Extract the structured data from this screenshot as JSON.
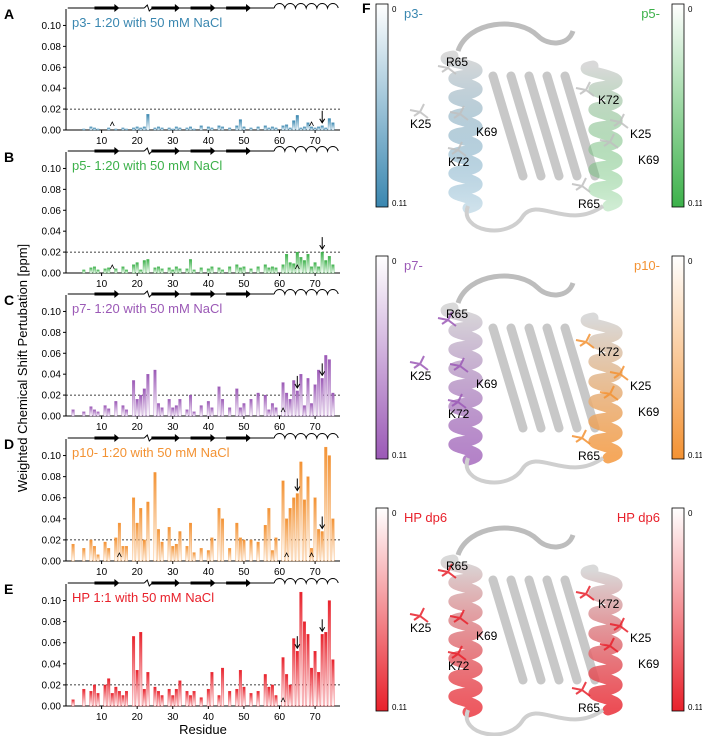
{
  "figure": {
    "ylabel": "Weighted Chemical Shift Pertubation [ppm]",
    "xlabel": "Residue",
    "right_panel_letter": "F",
    "threshold": 0.02,
    "threshold_label": "0.02"
  },
  "structures": [
    {
      "left_label": "p3-",
      "right_label": "p5-",
      "left_color": "#3a87b0",
      "right_color": "#3cb14a",
      "scale_top": "0",
      "scale_bottom": "0.11",
      "residues": [
        "R65",
        "K72",
        "K25",
        "K69",
        "K72",
        "K25",
        "K69",
        "R65"
      ]
    },
    {
      "left_label": "p7-",
      "right_label": "p10-",
      "left_color": "#9b59b6",
      "right_color": "#f39233",
      "scale_top": "0",
      "scale_bottom": "0.11",
      "residues": [
        "R65",
        "K72",
        "K25",
        "K69",
        "K72",
        "K25",
        "K69",
        "R65"
      ]
    },
    {
      "left_label": "HP dp6",
      "right_label": "HP dp6",
      "left_color": "#e8212b",
      "right_color": "#e8212b",
      "scale_top": "0",
      "scale_bottom": "0.11",
      "residues": [
        "R65",
        "K72",
        "K25",
        "K69",
        "K72",
        "K25",
        "K69",
        "R65"
      ]
    }
  ],
  "chart_data": [
    {
      "panel": "A",
      "type": "bar",
      "title": "p3- 1:20 with 50 mM NaCl",
      "color": "#3a87b0",
      "xlabel": "",
      "ylabel": "",
      "ylim": [
        0,
        0.11
      ],
      "xlim": [
        0,
        77
      ],
      "yticks": [
        "0.00",
        "0.02",
        "0.04",
        "0.06",
        "0.08",
        "0.10"
      ],
      "xticks": [
        10,
        20,
        30,
        40,
        50,
        60,
        70
      ],
      "x": [
        5,
        7,
        8,
        9,
        12,
        14,
        16,
        17,
        19,
        20,
        21,
        22,
        23,
        25,
        26,
        27,
        29,
        30,
        31,
        32,
        34,
        35,
        36,
        38,
        40,
        41,
        43,
        44,
        46,
        48,
        49,
        50,
        52,
        54,
        56,
        57,
        58,
        59,
        61,
        62,
        63,
        64,
        65,
        66,
        67,
        68,
        69,
        70,
        71,
        72,
        73,
        74,
        75
      ],
      "values": [
        0.001,
        0.003,
        0.002,
        0.001,
        0.002,
        0.001,
        0.002,
        0.001,
        0.002,
        0.003,
        0.002,
        0.003,
        0.015,
        0.002,
        0.003,
        0.002,
        0.002,
        0.001,
        0.003,
        0.002,
        0.002,
        0.003,
        0.001,
        0.004,
        0.003,
        0.002,
        0.004,
        0.003,
        0.002,
        0.004,
        0.01,
        0.003,
        0.002,
        0.003,
        0.004,
        0.002,
        0.003,
        0.002,
        0.004,
        0.005,
        0.002,
        0.009,
        0.014,
        0.002,
        0.003,
        0.007,
        0.003,
        0.002,
        0.003,
        0.004,
        0.002,
        0.011,
        0.007
      ],
      "arrows": [
        72
      ],
      "carets": [
        13,
        69
      ]
    },
    {
      "panel": "B",
      "type": "bar",
      "title": "p5- 1:20 with 50 mM NaCl",
      "color": "#3cb14a",
      "xlabel": "",
      "ylabel": "",
      "ylim": [
        0,
        0.11
      ],
      "xlim": [
        0,
        77
      ],
      "yticks": [
        "0.00",
        "0.02",
        "0.04",
        "0.06",
        "0.08",
        "0.10"
      ],
      "xticks": [
        10,
        20,
        30,
        40,
        50,
        60,
        70
      ],
      "x": [
        5,
        7,
        8,
        9,
        11,
        12,
        14,
        16,
        17,
        19,
        20,
        21,
        22,
        23,
        25,
        26,
        27,
        29,
        30,
        31,
        32,
        34,
        35,
        36,
        38,
        40,
        41,
        43,
        44,
        46,
        48,
        49,
        50,
        52,
        54,
        56,
        57,
        58,
        59,
        61,
        62,
        63,
        64,
        65,
        66,
        67,
        68,
        69,
        70,
        71,
        72,
        73,
        74,
        75
      ],
      "values": [
        0.003,
        0.005,
        0.006,
        0.003,
        0.004,
        0.005,
        0.004,
        0.006,
        0.003,
        0.008,
        0.01,
        0.003,
        0.012,
        0.013,
        0.005,
        0.006,
        0.004,
        0.005,
        0.003,
        0.006,
        0.004,
        0.004,
        0.013,
        0.003,
        0.005,
        0.004,
        0.006,
        0.005,
        0.003,
        0.006,
        0.008,
        0.005,
        0.006,
        0.004,
        0.006,
        0.008,
        0.005,
        0.006,
        0.005,
        0.008,
        0.018,
        0.01,
        0.009,
        0.02,
        0.015,
        0.012,
        0.018,
        0.006,
        0.01,
        0.006,
        0.02,
        0.012,
        0.016,
        0.008
      ],
      "arrows": [
        72
      ],
      "carets": [
        13,
        65
      ]
    },
    {
      "panel": "C",
      "type": "bar",
      "title": "p7- 1:20 with 50 mM NaCl",
      "color": "#9b59b6",
      "xlabel": "",
      "ylabel": "",
      "ylim": [
        0,
        0.11
      ],
      "xlim": [
        0,
        77
      ],
      "yticks": [
        "0.00",
        "0.02",
        "0.04",
        "0.06",
        "0.08",
        "0.10"
      ],
      "xticks": [
        10,
        20,
        30,
        40,
        50,
        60,
        70
      ],
      "x": [
        2,
        5,
        7,
        8,
        9,
        11,
        12,
        14,
        16,
        17,
        19,
        20,
        21,
        22,
        23,
        25,
        26,
        27,
        29,
        30,
        31,
        32,
        34,
        35,
        36,
        38,
        40,
        41,
        43,
        44,
        46,
        48,
        49,
        50,
        52,
        54,
        56,
        57,
        58,
        59,
        61,
        62,
        63,
        64,
        65,
        66,
        67,
        68,
        69,
        70,
        71,
        72,
        73,
        74,
        75
      ],
      "values": [
        0.006,
        0.004,
        0.009,
        0.006,
        0.004,
        0.01,
        0.007,
        0.014,
        0.01,
        0.006,
        0.034,
        0.016,
        0.02,
        0.026,
        0.04,
        0.044,
        0.012,
        0.008,
        0.016,
        0.008,
        0.01,
        0.016,
        0.006,
        0.02,
        0.004,
        0.01,
        0.014,
        0.008,
        0.028,
        0.016,
        0.008,
        0.026,
        0.008,
        0.012,
        0.016,
        0.022,
        0.02,
        0.006,
        0.012,
        0.008,
        0.032,
        0.022,
        0.016,
        0.034,
        0.024,
        0.04,
        0.01,
        0.036,
        0.012,
        0.03,
        0.044,
        0.036,
        0.058,
        0.054,
        0.022
      ],
      "arrows": [
        65,
        72
      ],
      "carets": [
        61
      ]
    },
    {
      "panel": "D",
      "type": "bar",
      "title": "p10- 1:20 with 50 mM NaCl",
      "color": "#f39233",
      "xlabel": "",
      "ylabel": "",
      "ylim": [
        0,
        0.11
      ],
      "xlim": [
        0,
        77
      ],
      "yticks": [
        "0.00",
        "0.02",
        "0.04",
        "0.06",
        "0.08",
        "0.10"
      ],
      "xticks": [
        10,
        20,
        30,
        40,
        50,
        60,
        70
      ],
      "x": [
        2,
        5,
        7,
        8,
        9,
        11,
        12,
        14,
        15,
        16,
        17,
        19,
        20,
        21,
        22,
        23,
        25,
        26,
        27,
        29,
        30,
        31,
        32,
        34,
        35,
        36,
        38,
        40,
        41,
        43,
        44,
        46,
        48,
        49,
        50,
        52,
        54,
        56,
        57,
        58,
        59,
        61,
        62,
        63,
        64,
        65,
        66,
        67,
        68,
        69,
        70,
        71,
        72,
        73,
        74,
        75
      ],
      "values": [
        0.016,
        0.012,
        0.02,
        0.014,
        0.006,
        0.018,
        0.012,
        0.022,
        0.036,
        0.014,
        0.014,
        0.06,
        0.036,
        0.05,
        0.02,
        0.056,
        0.084,
        0.03,
        0.018,
        0.032,
        0.014,
        0.016,
        0.028,
        0.014,
        0.036,
        0.008,
        0.012,
        0.01,
        0.022,
        0.05,
        0.04,
        0.012,
        0.036,
        0.022,
        0.02,
        0.02,
        0.018,
        0.034,
        0.05,
        0.01,
        0.022,
        0.076,
        0.04,
        0.05,
        0.06,
        0.064,
        0.094,
        0.058,
        0.08,
        0.012,
        0.06,
        0.03,
        0.028,
        0.108,
        0.1,
        0.04
      ],
      "arrows": [
        65,
        72
      ],
      "carets": [
        15,
        62,
        69
      ]
    },
    {
      "panel": "E",
      "type": "bar",
      "title": "HP 1:1 with 50 mM NaCl",
      "color": "#e8212b",
      "xlabel": "Residue",
      "ylabel": "",
      "ylim": [
        0,
        0.11
      ],
      "xlim": [
        0,
        77
      ],
      "yticks": [
        "0.00",
        "0.02",
        "0.04",
        "0.06",
        "0.08",
        "0.10"
      ],
      "xticks": [
        10,
        20,
        30,
        40,
        50,
        60,
        70
      ],
      "x": [
        2,
        5,
        7,
        8,
        9,
        11,
        12,
        13,
        14,
        15,
        16,
        17,
        19,
        20,
        21,
        22,
        23,
        25,
        26,
        27,
        29,
        30,
        31,
        32,
        34,
        35,
        36,
        38,
        40,
        41,
        43,
        44,
        46,
        48,
        49,
        50,
        52,
        54,
        56,
        57,
        58,
        59,
        61,
        62,
        63,
        64,
        65,
        66,
        67,
        68,
        69,
        70,
        71,
        72,
        73,
        74,
        75
      ],
      "values": [
        0.006,
        0.016,
        0.014,
        0.02,
        0.012,
        0.02,
        0.026,
        0.012,
        0.018,
        0.014,
        0.01,
        0.014,
        0.066,
        0.034,
        0.07,
        0.016,
        0.032,
        0.018,
        0.014,
        0.01,
        0.016,
        0.01,
        0.016,
        0.024,
        0.014,
        0.01,
        0.014,
        0.008,
        0.016,
        0.032,
        0.01,
        0.036,
        0.014,
        0.016,
        0.034,
        0.018,
        0.012,
        0.014,
        0.03,
        0.018,
        0.02,
        0.01,
        0.046,
        0.03,
        0.02,
        0.064,
        0.052,
        0.108,
        0.08,
        0.068,
        0.036,
        0.052,
        0.032,
        0.068,
        0.07,
        0.1,
        0.044
      ],
      "arrows": [
        65,
        72
      ],
      "carets": [
        61
      ]
    }
  ]
}
